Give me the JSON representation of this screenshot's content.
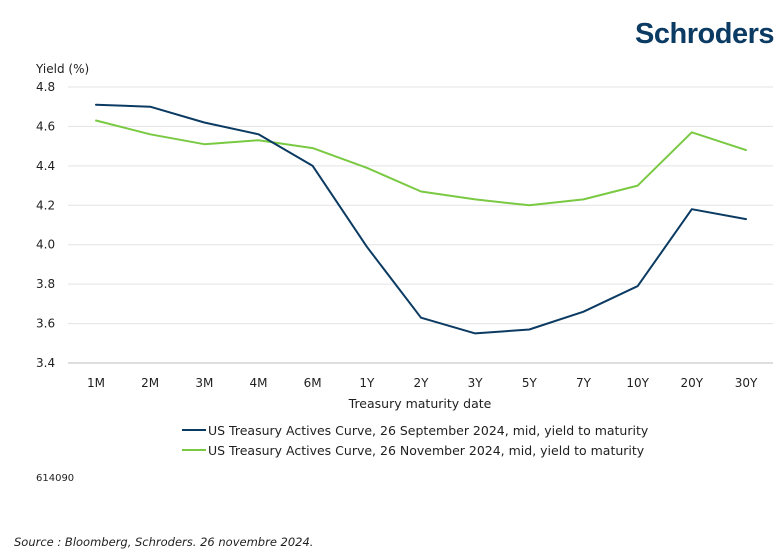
{
  "logo": {
    "text": "Schroders"
  },
  "chart_data": {
    "type": "line",
    "title": "",
    "xlabel": "Treasury maturity date",
    "ylabel": "Yield (%)",
    "categories": [
      "1M",
      "2M",
      "3M",
      "4M",
      "6M",
      "1Y",
      "2Y",
      "3Y",
      "5Y",
      "7Y",
      "10Y",
      "20Y",
      "30Y"
    ],
    "yticks": [
      "3.4",
      "3.6",
      "3.8",
      "4.0",
      "4.2",
      "4.4",
      "4.6",
      "4.8"
    ],
    "ylim": [
      3.4,
      4.8
    ],
    "grid": true,
    "legend_position": "bottom",
    "series": [
      {
        "name": "US Treasury Actives Curve, 26 September 2024, mid, yield to maturity",
        "color": "#0b3a62",
        "values": [
          4.71,
          4.7,
          4.62,
          4.56,
          4.4,
          3.99,
          3.63,
          3.55,
          3.57,
          3.66,
          3.79,
          4.18,
          4.13
        ]
      },
      {
        "name": "US Treasury Actives Curve, 26 November 2024, mid, yield to maturity",
        "color": "#7ac943",
        "values": [
          4.63,
          4.56,
          4.51,
          4.53,
          4.49,
          4.39,
          4.27,
          4.23,
          4.2,
          4.23,
          4.3,
          4.57,
          4.48
        ]
      }
    ]
  },
  "footer": {
    "code": "614090",
    "source": "Source : Bloomberg, Schroders. 26 novembre 2024."
  }
}
